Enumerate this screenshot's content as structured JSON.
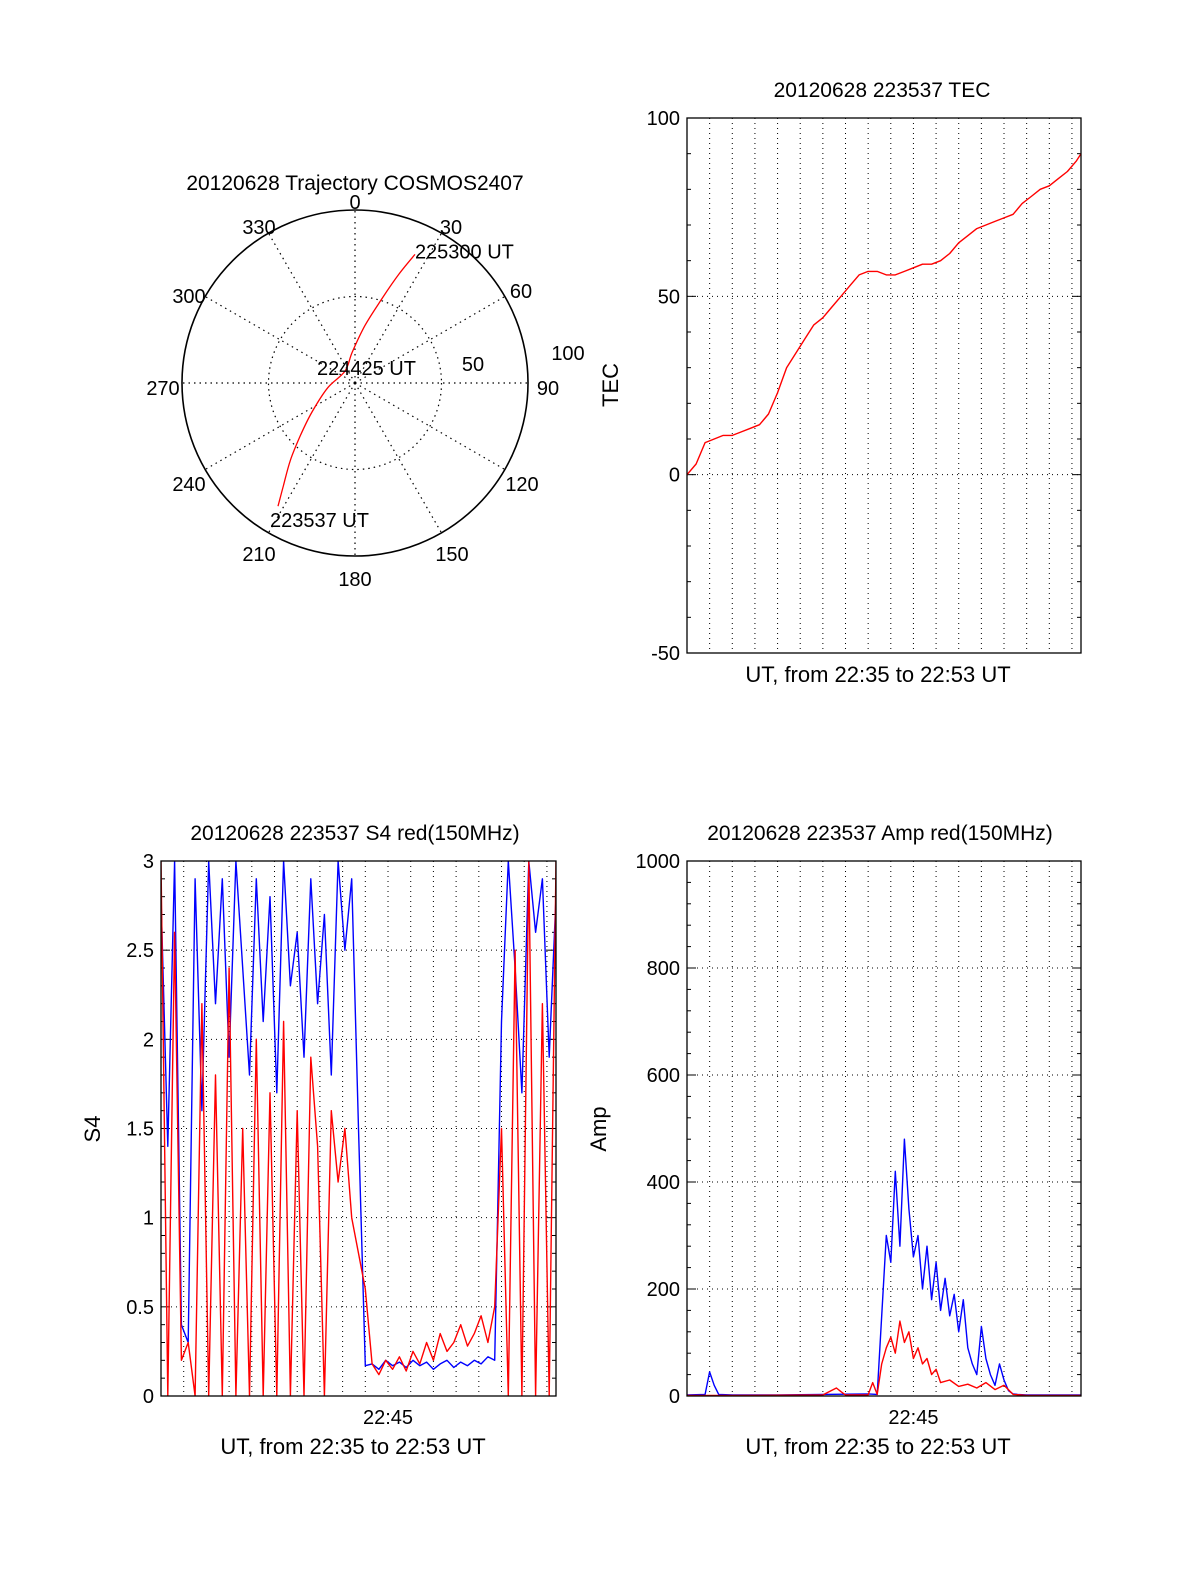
{
  "chart_data": [
    {
      "id": "trajectory",
      "type": "polar",
      "title": "20120628 Trajectory COSMOS2407",
      "angle_labels": [
        "0",
        "30",
        "60",
        "90",
        "120",
        "150",
        "180",
        "210",
        "240",
        "270",
        "300",
        "330"
      ],
      "radius_labels": [
        "50",
        "100"
      ],
      "rlim": [
        0,
        100
      ],
      "grid": true,
      "series": [
        {
          "color": "#ff0000",
          "points": [
            [
              212,
              84
            ],
            [
              215,
              72
            ],
            [
              220,
              58
            ],
            [
              226,
              44
            ],
            [
              236,
              30
            ],
            [
              260,
              16
            ],
            [
              320,
              9
            ],
            [
              355,
              18
            ],
            [
              10,
              34
            ],
            [
              18,
              52
            ],
            [
              22,
              68
            ],
            [
              25,
              82
            ]
          ]
        }
      ],
      "annotations": [
        {
          "text": "225300 UT",
          "az": 25,
          "r": 82
        },
        {
          "text": "224425 UT",
          "az": 320,
          "r": 9
        },
        {
          "text": "223537 UT",
          "az": 212,
          "r": 84
        }
      ]
    },
    {
      "id": "tec",
      "type": "line",
      "title": "20120628 223537 TEC",
      "xlabel": "UT, from 22:35 to 22:53 UT",
      "ylabel": "TEC",
      "xlim": [
        0,
        17.4
      ],
      "ylim": [
        -50,
        100
      ],
      "yticks": [
        -50,
        0,
        50,
        100
      ],
      "xgrid_minutes": 1,
      "grid": true,
      "series": [
        {
          "color": "#ff0000",
          "x": [
            0.0,
            0.4,
            0.8,
            1.2,
            1.6,
            2.0,
            2.4,
            2.8,
            3.2,
            3.6,
            4.0,
            4.4,
            4.8,
            5.2,
            5.6,
            6.0,
            6.4,
            6.8,
            7.2,
            7.6,
            8.0,
            8.4,
            8.8,
            9.2,
            9.6,
            10.0,
            10.4,
            10.8,
            11.2,
            11.6,
            12.0,
            12.4,
            12.8,
            13.2,
            13.6,
            14.0,
            14.4,
            14.8,
            15.2,
            15.6,
            16.0,
            16.4,
            16.8,
            17.2,
            17.4
          ],
          "y": [
            0,
            3,
            9,
            10,
            11,
            11,
            12,
            13,
            14,
            17,
            23,
            30,
            34,
            38,
            42,
            44,
            47,
            50,
            53,
            56,
            57,
            57,
            56,
            56,
            57,
            58,
            59,
            59,
            60,
            62,
            65,
            67,
            69,
            70,
            71,
            72,
            73,
            76,
            78,
            80,
            81,
            83,
            85,
            88,
            90
          ]
        }
      ]
    },
    {
      "id": "s4",
      "type": "line",
      "title": "20120628 223537 S4 red(150MHz)",
      "xlabel": "UT, from 22:35 to 22:53 UT",
      "ylabel": "S4",
      "xlim": [
        0,
        17.4
      ],
      "ylim": [
        0,
        3
      ],
      "yticks": [
        0,
        0.5,
        1,
        1.5,
        2,
        2.5,
        3
      ],
      "ytick_labels": [
        "0",
        "0.5",
        "1",
        "1.5",
        "2",
        "2.5",
        "3"
      ],
      "xticks": [
        10
      ],
      "xtick_labels": [
        "22:45"
      ],
      "xgrid_minutes": 1,
      "grid": true,
      "series": [
        {
          "color": "#0000ff",
          "name": "",
          "x": [
            0.0,
            0.3,
            0.6,
            0.9,
            1.2,
            1.5,
            1.8,
            2.1,
            2.4,
            2.7,
            3.0,
            3.3,
            3.6,
            3.9,
            4.2,
            4.5,
            4.8,
            5.1,
            5.4,
            5.7,
            6.0,
            6.3,
            6.6,
            6.9,
            7.2,
            7.5,
            7.8,
            8.1,
            8.4,
            8.7,
            9.0,
            9.3,
            9.6,
            9.9,
            10.2,
            10.5,
            10.8,
            11.1,
            11.4,
            11.7,
            12.0,
            12.3,
            12.6,
            12.9,
            13.2,
            13.5,
            13.8,
            14.1,
            14.4,
            14.7,
            15.0,
            15.3,
            15.6,
            15.9,
            16.2,
            16.5,
            16.8,
            17.1,
            17.4
          ],
          "y": [
            2.8,
            1.4,
            3.0,
            0.4,
            0.3,
            2.9,
            1.6,
            3.0,
            2.2,
            2.9,
            1.9,
            3.0,
            2.4,
            1.8,
            2.9,
            2.1,
            2.8,
            1.7,
            3.0,
            2.3,
            2.6,
            1.9,
            2.9,
            2.2,
            2.7,
            1.8,
            3.0,
            2.5,
            2.9,
            1.5,
            0.17,
            0.18,
            0.15,
            0.2,
            0.17,
            0.19,
            0.16,
            0.2,
            0.17,
            0.19,
            0.15,
            0.18,
            0.2,
            0.16,
            0.19,
            0.17,
            0.2,
            0.18,
            0.22,
            0.2,
            2.1,
            3.0,
            2.4,
            1.7,
            3.0,
            2.6,
            2.9,
            1.9,
            2.8
          ]
        },
        {
          "color": "#ff0000",
          "name": "",
          "x": [
            0.0,
            0.3,
            0.6,
            0.9,
            1.2,
            1.5,
            1.8,
            2.1,
            2.4,
            2.7,
            3.0,
            3.3,
            3.6,
            3.9,
            4.2,
            4.5,
            4.8,
            5.1,
            5.4,
            5.7,
            6.0,
            6.3,
            6.6,
            6.9,
            7.2,
            7.5,
            7.8,
            8.1,
            8.4,
            8.7,
            9.0,
            9.3,
            9.6,
            9.9,
            10.2,
            10.5,
            10.8,
            11.1,
            11.4,
            11.7,
            12.0,
            12.3,
            12.6,
            12.9,
            13.2,
            13.5,
            13.8,
            14.1,
            14.4,
            14.7,
            15.0,
            15.3,
            15.6,
            15.9,
            16.2,
            16.5,
            16.8,
            17.1,
            17.4
          ],
          "y": [
            3.0,
            0.0,
            2.6,
            0.2,
            0.3,
            0.0,
            2.2,
            0.0,
            1.8,
            0.0,
            2.4,
            0.0,
            1.5,
            0.0,
            2.0,
            0.0,
            1.7,
            0.0,
            2.1,
            0.0,
            1.6,
            0.0,
            1.9,
            1.4,
            0.0,
            1.6,
            1.2,
            1.5,
            1.0,
            0.8,
            0.6,
            0.18,
            0.12,
            0.2,
            0.15,
            0.22,
            0.14,
            0.25,
            0.18,
            0.3,
            0.2,
            0.35,
            0.25,
            0.3,
            0.4,
            0.28,
            0.35,
            0.45,
            0.3,
            0.5,
            1.5,
            0.0,
            2.5,
            0.0,
            3.0,
            0.0,
            2.2,
            0.0,
            3.0
          ]
        }
      ]
    },
    {
      "id": "amp",
      "type": "line",
      "title": "20120628 223537 Amp red(150MHz)",
      "xlabel": "UT, from 22:35 to 22:53 UT",
      "ylabel": "Amp",
      "xlim": [
        0,
        17.4
      ],
      "ylim": [
        0,
        1000
      ],
      "yticks": [
        0,
        200,
        400,
        600,
        800,
        1000
      ],
      "xticks": [
        10
      ],
      "xtick_labels": [
        "22:45"
      ],
      "xgrid_minutes": 1,
      "grid": true,
      "series": [
        {
          "color": "#0000ff",
          "name": "",
          "x": [
            0.0,
            0.8,
            1.0,
            1.2,
            1.4,
            2.0,
            4.0,
            6.0,
            8.0,
            8.4,
            8.6,
            8.8,
            9.0,
            9.2,
            9.4,
            9.6,
            9.8,
            10.0,
            10.2,
            10.4,
            10.6,
            10.8,
            11.0,
            11.2,
            11.4,
            11.6,
            11.8,
            12.0,
            12.2,
            12.4,
            12.6,
            12.8,
            13.0,
            13.2,
            13.4,
            13.6,
            13.8,
            14.0,
            14.2,
            14.4,
            14.6,
            15.0,
            16.0,
            17.4
          ],
          "y": [
            2,
            3,
            45,
            20,
            3,
            2,
            2,
            3,
            4,
            3,
            150,
            300,
            250,
            420,
            280,
            480,
            350,
            260,
            300,
            200,
            280,
            180,
            250,
            160,
            220,
            150,
            190,
            120,
            180,
            90,
            60,
            40,
            130,
            70,
            40,
            20,
            60,
            30,
            10,
            4,
            3,
            2,
            2,
            2
          ]
        },
        {
          "color": "#ff0000",
          "name": "",
          "x": [
            0.0,
            2.0,
            6.0,
            6.6,
            6.8,
            7.0,
            8.0,
            8.2,
            8.4,
            8.6,
            8.8,
            9.0,
            9.2,
            9.4,
            9.6,
            9.8,
            10.0,
            10.2,
            10.4,
            10.6,
            10.8,
            11.0,
            11.2,
            11.6,
            12.0,
            12.4,
            12.8,
            13.2,
            13.6,
            14.0,
            14.4,
            15.0,
            17.4
          ],
          "y": [
            1,
            1,
            2,
            15,
            8,
            2,
            2,
            25,
            3,
            60,
            90,
            110,
            80,
            140,
            100,
            120,
            70,
            90,
            60,
            70,
            40,
            50,
            25,
            30,
            18,
            22,
            15,
            25,
            12,
            20,
            3,
            1,
            1
          ]
        }
      ]
    }
  ]
}
